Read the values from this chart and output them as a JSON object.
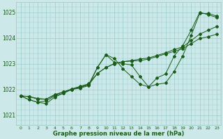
{
  "xlabel": "Graphe pression niveau de la mer (hPa)",
  "background_color": "#cce8e8",
  "grid_color": "#99cccc",
  "line_color": "#1a5c1a",
  "ylim": [
    1020.6,
    1025.4
  ],
  "yticks": [
    1021,
    1022,
    1023,
    1024,
    1025
  ],
  "xlim": [
    -0.5,
    23.5
  ],
  "s1": [
    1021.75,
    1021.6,
    1021.5,
    1021.45,
    1021.7,
    1021.85,
    1022.0,
    1022.05,
    1022.15,
    1022.85,
    1023.35,
    1023.2,
    1022.8,
    1022.5,
    1022.2,
    1022.1,
    1022.45,
    1022.6,
    1023.3,
    1023.7,
    1024.3,
    1025.0,
    1024.9,
    1024.8
  ],
  "s2": [
    1021.75,
    1021.6,
    1021.5,
    1021.55,
    1021.75,
    1021.85,
    1022.0,
    1022.1,
    1022.2,
    1022.85,
    1023.35,
    1023.05,
    1023.0,
    1022.95,
    1022.5,
    1022.1,
    1022.2,
    1022.25,
    1022.7,
    1023.3,
    1024.1,
    1024.95,
    1024.95,
    1024.85
  ],
  "s3": [
    1021.75,
    1021.72,
    1021.65,
    1021.62,
    1021.78,
    1021.9,
    1022.02,
    1022.12,
    1022.22,
    1022.62,
    1022.85,
    1023.0,
    1023.08,
    1023.12,
    1023.18,
    1023.22,
    1023.32,
    1023.42,
    1023.55,
    1023.65,
    1023.9,
    1024.15,
    1024.3,
    1024.45
  ],
  "s4": [
    1021.75,
    1021.72,
    1021.62,
    1021.62,
    1021.8,
    1021.9,
    1022.0,
    1022.08,
    1022.18,
    1022.62,
    1022.85,
    1023.0,
    1023.08,
    1023.1,
    1023.12,
    1023.18,
    1023.28,
    1023.38,
    1023.48,
    1023.58,
    1023.78,
    1023.98,
    1024.05,
    1024.15
  ]
}
